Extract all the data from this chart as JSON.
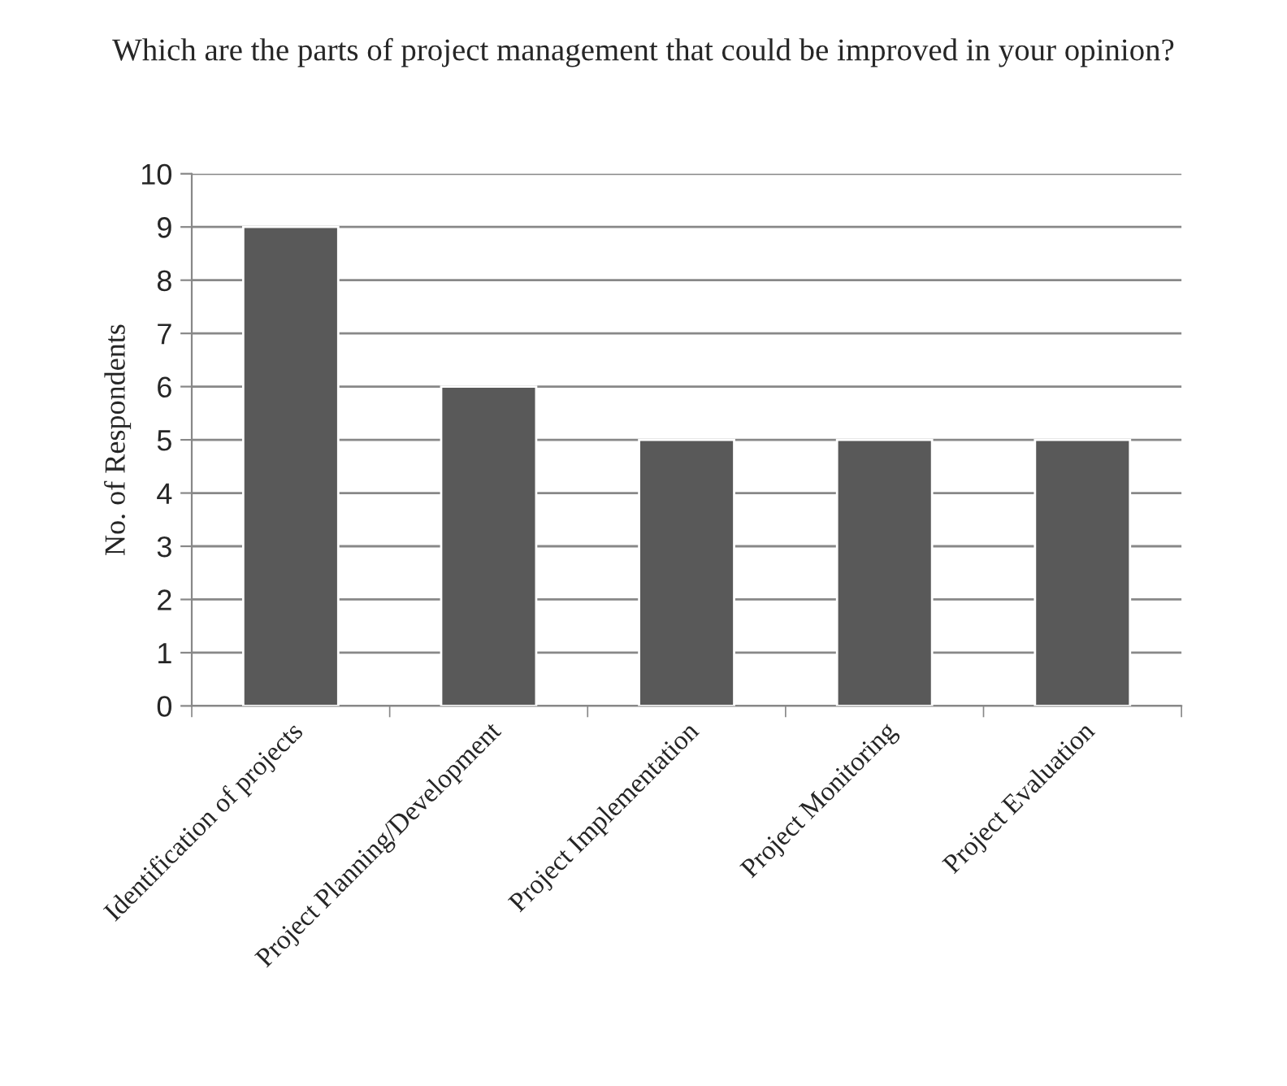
{
  "chart_data": {
    "type": "bar",
    "title": "Which are the parts of project management that could be improved in your opinion?",
    "ylabel": "No. of Respondents",
    "categories": [
      "Identification of projects",
      "Project Planning/Development",
      "Project Implementation",
      "Project Monitoring",
      "Project Evaluation"
    ],
    "values": [
      9,
      6,
      5,
      5,
      5
    ],
    "color": "#595959",
    "ylim": [
      0,
      10
    ],
    "yticks": [
      0,
      1,
      2,
      3,
      4,
      5,
      6,
      7,
      8,
      9,
      10
    ],
    "grid": "y",
    "legend": false
  }
}
